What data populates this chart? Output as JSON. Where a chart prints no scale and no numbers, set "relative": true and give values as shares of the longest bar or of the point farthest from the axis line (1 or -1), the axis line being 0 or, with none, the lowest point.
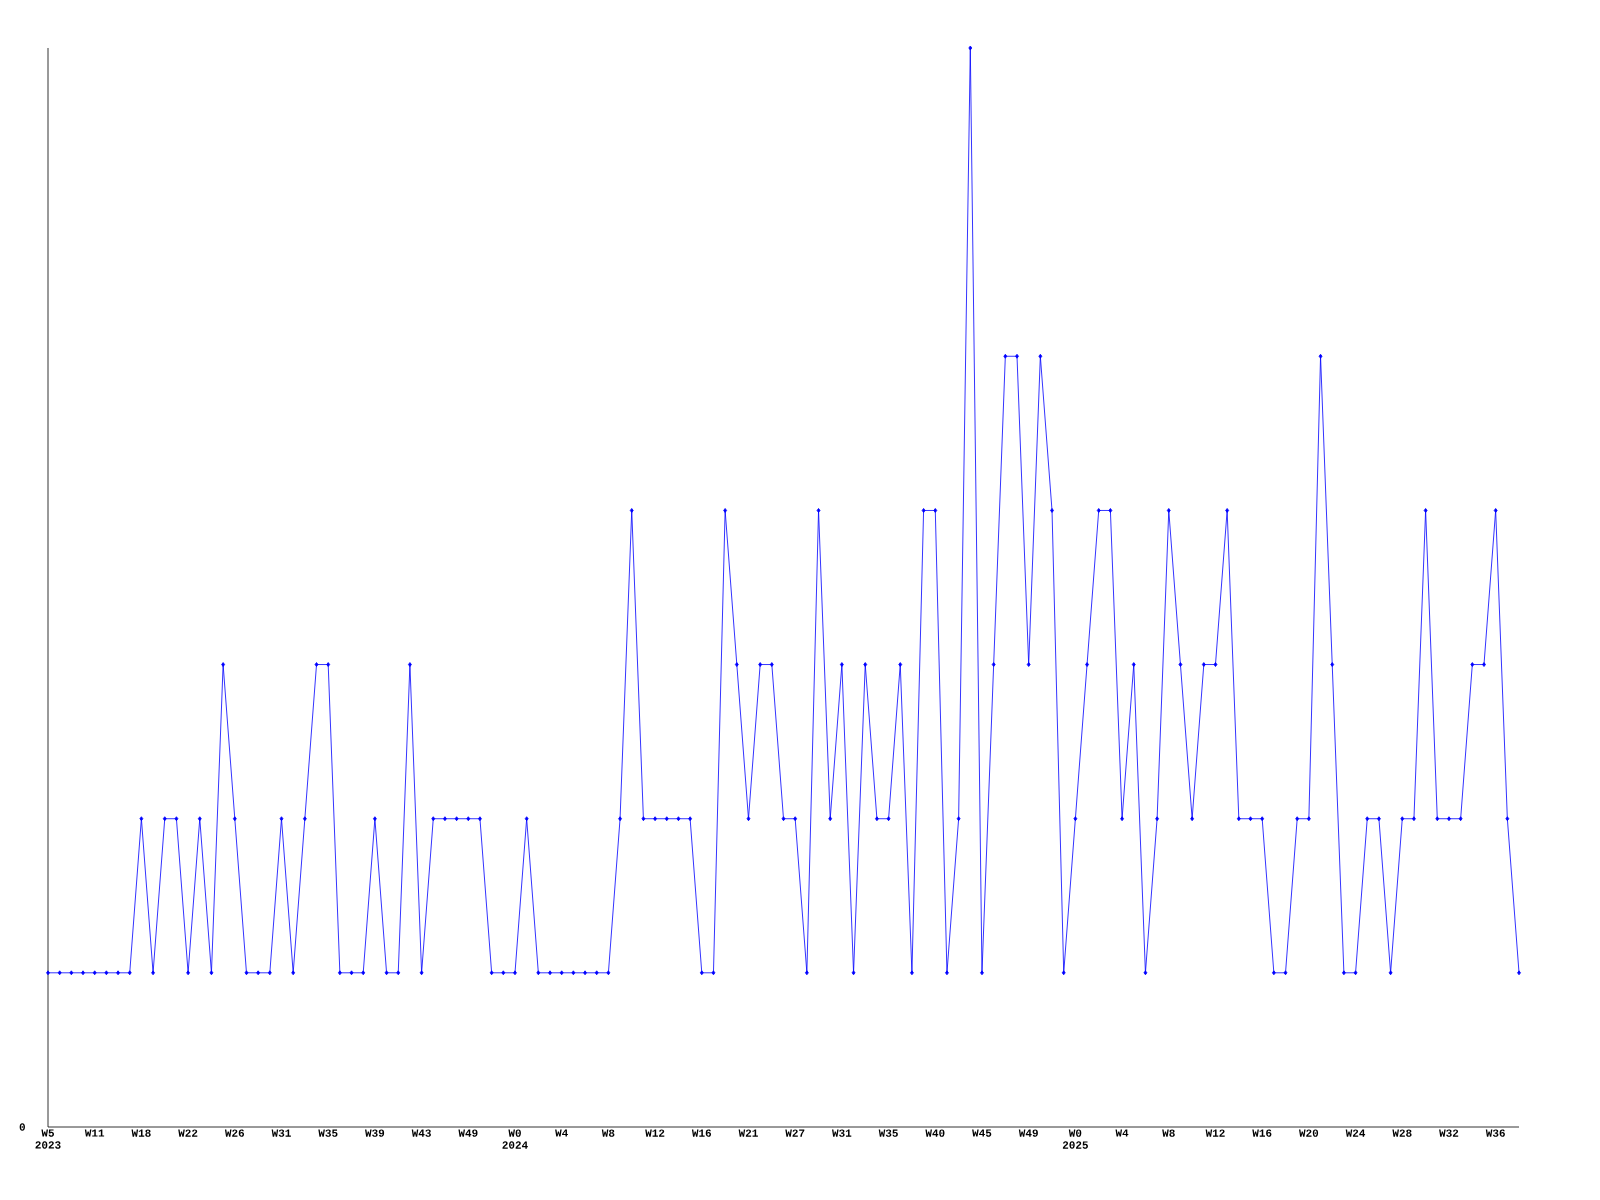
{
  "chart_data": {
    "type": "line",
    "relative": true,
    "color": "#0000ff",
    "marker": "diamond",
    "line_style": "solid",
    "grid": false,
    "annotations": [
      "0"
    ],
    "categories": [
      "W5 2023",
      null,
      null,
      null,
      "W11",
      null,
      null,
      null,
      "W18",
      null,
      null,
      null,
      "W22",
      null,
      null,
      null,
      "W26",
      null,
      null,
      null,
      "W31",
      null,
      null,
      null,
      "W35",
      null,
      null,
      null,
      "W39",
      null,
      null,
      null,
      "W43",
      null,
      null,
      null,
      "W49",
      null,
      null,
      null,
      "W0 2024",
      null,
      null,
      null,
      "W4",
      null,
      null,
      null,
      "W8",
      null,
      null,
      null,
      "W12",
      null,
      null,
      null,
      "W16",
      null,
      null,
      null,
      "W21",
      null,
      null,
      null,
      "W27",
      null,
      null,
      null,
      "W31",
      null,
      null,
      null,
      "W35",
      null,
      null,
      null,
      "W40",
      null,
      null,
      null,
      "W45",
      null,
      null,
      null,
      "W49",
      null,
      null,
      null,
      "W0 2025",
      null,
      null,
      null,
      "W4",
      null,
      null,
      null,
      "W8",
      null,
      null,
      null,
      "W12",
      null,
      null,
      null,
      "W16",
      null,
      null,
      null,
      "W20",
      null,
      null,
      null,
      "W24",
      null,
      null,
      null,
      "W28",
      null,
      null,
      null,
      "W32",
      null,
      null,
      null,
      "W36",
      null,
      null
    ],
    "values": [
      0.1429,
      0.1429,
      0.1429,
      0.1429,
      0.1429,
      0.1429,
      0.1429,
      0.1429,
      0.2857,
      0.1429,
      0.2857,
      0.2857,
      0.1429,
      0.2857,
      0.1429,
      0.4286,
      0.2857,
      0.1429,
      0.1429,
      0.1429,
      0.2857,
      0.1429,
      0.2857,
      0.4286,
      0.4286,
      0.1429,
      0.1429,
      0.1429,
      0.2857,
      0.1429,
      0.1429,
      0.4286,
      0.1429,
      0.2857,
      0.2857,
      0.2857,
      0.2857,
      0.2857,
      0.1429,
      0.1429,
      0.1429,
      0.2857,
      0.1429,
      0.1429,
      0.1429,
      0.1429,
      0.1429,
      0.1429,
      0.1429,
      0.2857,
      0.5714,
      0.2857,
      0.2857,
      0.2857,
      0.2857,
      0.2857,
      0.1429,
      0.1429,
      0.5714,
      0.4286,
      0.2857,
      0.4286,
      0.4286,
      0.2857,
      0.2857,
      0.1429,
      0.5714,
      0.2857,
      0.4286,
      0.1429,
      0.4286,
      0.2857,
      0.2857,
      0.4286,
      0.1429,
      0.5714,
      0.5714,
      0.1429,
      0.2857,
      1,
      0.1429,
      0.4286,
      0.7143,
      0.7143,
      0.4286,
      0.7143,
      0.5714,
      0.1429,
      0.2857,
      0.4286,
      0.5714,
      0.5714,
      0.2857,
      0.4286,
      0.1429,
      0.2857,
      0.5714,
      0.4286,
      0.2857,
      0.4286,
      0.4286,
      0.5714,
      0.2857,
      0.2857,
      0.2857,
      0.1429,
      0.1429,
      0.2857,
      0.2857,
      0.7143,
      0.4286,
      0.1429,
      0.1429,
      0.2857,
      0.2857,
      0.1429,
      0.2857,
      0.2857,
      0.5714,
      0.2857,
      0.2857,
      0.2857,
      0.4286,
      0.4286,
      0.5714,
      0.2857,
      0.1429
    ]
  }
}
